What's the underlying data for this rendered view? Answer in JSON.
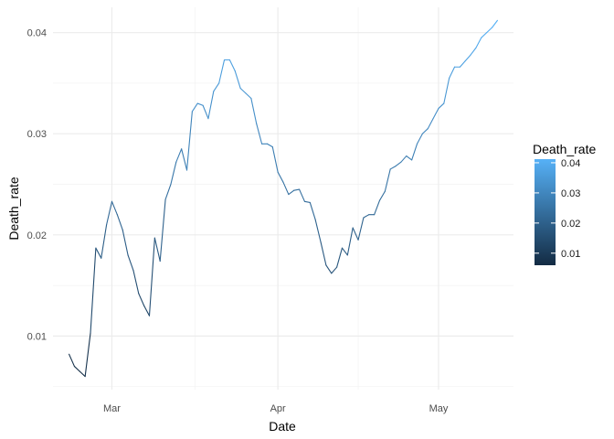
{
  "chart_data": {
    "type": "line",
    "title": "",
    "xlabel": "Date",
    "ylabel": "Death_rate",
    "x_tick_labels": [
      "Mar",
      "Apr",
      "May"
    ],
    "x_ticks": [
      "2020-03-01",
      "2020-04-01",
      "2020-05-01"
    ],
    "y_ticks": [
      0.01,
      0.02,
      0.03,
      0.04
    ],
    "y_tick_labels": [
      "0.01",
      "0.02",
      "0.03",
      "0.04"
    ],
    "xlim": [
      "2020-02-19",
      "2020-05-15"
    ],
    "ylim": [
      0.0047,
      0.0425
    ],
    "grid": true,
    "legend": {
      "title": "Death_rate",
      "position": "right",
      "type": "colorbar",
      "breaks": [
        0.01,
        0.02,
        0.03,
        0.04
      ],
      "labels": [
        "0.01",
        "0.02",
        "0.03",
        "0.04"
      ],
      "range": [
        0.006,
        0.0412
      ],
      "low_color": "#132B43",
      "high_color": "#56B1F7"
    },
    "series": [
      {
        "x": [
          "2020-02-22",
          "2020-02-23",
          "2020-02-24",
          "2020-02-25",
          "2020-02-26",
          "2020-02-27",
          "2020-02-28",
          "2020-02-29",
          "2020-03-01",
          "2020-03-02",
          "2020-03-03",
          "2020-03-04",
          "2020-03-05",
          "2020-03-06",
          "2020-03-07",
          "2020-03-08",
          "2020-03-09",
          "2020-03-10",
          "2020-03-11",
          "2020-03-12",
          "2020-03-13",
          "2020-03-14",
          "2020-03-15",
          "2020-03-16",
          "2020-03-17",
          "2020-03-18",
          "2020-03-19",
          "2020-03-20",
          "2020-03-21",
          "2020-03-22",
          "2020-03-23",
          "2020-03-24",
          "2020-03-25",
          "2020-03-26",
          "2020-03-27",
          "2020-03-28",
          "2020-03-29",
          "2020-03-30",
          "2020-03-31",
          "2020-04-01",
          "2020-04-02",
          "2020-04-03",
          "2020-04-04",
          "2020-04-05",
          "2020-04-06",
          "2020-04-07",
          "2020-04-08",
          "2020-04-09",
          "2020-04-10",
          "2020-04-11",
          "2020-04-12",
          "2020-04-13",
          "2020-04-14",
          "2020-04-15",
          "2020-04-16",
          "2020-04-17",
          "2020-04-18",
          "2020-04-19",
          "2020-04-20",
          "2020-04-21",
          "2020-04-22",
          "2020-04-23",
          "2020-04-24",
          "2020-04-25",
          "2020-04-26",
          "2020-04-27",
          "2020-04-28",
          "2020-04-29",
          "2020-04-30",
          "2020-05-01",
          "2020-05-02",
          "2020-05-03",
          "2020-05-04",
          "2020-05-05",
          "2020-05-06",
          "2020-05-07",
          "2020-05-08",
          "2020-05-09",
          "2020-05-10",
          "2020-05-11",
          "2020-05-12"
        ],
        "y": [
          0.0082,
          0.007,
          0.0065,
          0.006,
          0.0103,
          0.0187,
          0.0177,
          0.021,
          0.0233,
          0.022,
          0.0205,
          0.018,
          0.0165,
          0.0142,
          0.013,
          0.012,
          0.0197,
          0.0174,
          0.0235,
          0.025,
          0.0272,
          0.0285,
          0.0264,
          0.0322,
          0.033,
          0.0328,
          0.0315,
          0.0342,
          0.035,
          0.0373,
          0.0373,
          0.0362,
          0.0345,
          0.034,
          0.0335,
          0.031,
          0.029,
          0.029,
          0.0287,
          0.0262,
          0.0252,
          0.024,
          0.0244,
          0.0245,
          0.0233,
          0.0232,
          0.0215,
          0.0193,
          0.017,
          0.0162,
          0.0168,
          0.0187,
          0.018,
          0.0207,
          0.0195,
          0.0217,
          0.022,
          0.022,
          0.0234,
          0.0243,
          0.0265,
          0.0268,
          0.0272,
          0.0278,
          0.0274,
          0.029,
          0.03,
          0.0305,
          0.0315,
          0.0325,
          0.033,
          0.0355,
          0.0366,
          0.0366,
          0.0372,
          0.0378,
          0.0385,
          0.0395,
          0.04,
          0.0405,
          0.0412
        ]
      }
    ]
  }
}
